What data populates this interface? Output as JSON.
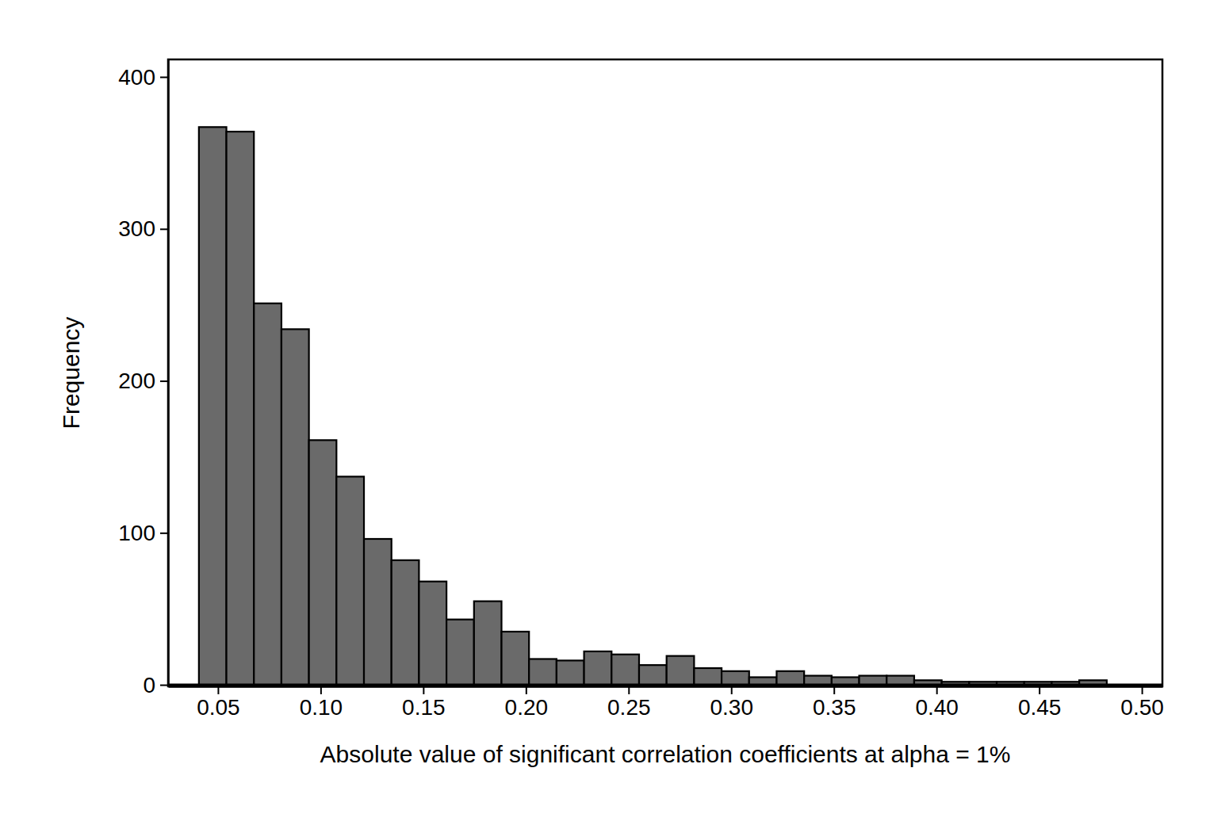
{
  "chart_data": {
    "type": "histogram",
    "x_label": "Absolute value of significant correlation coefficients at alpha = 1%",
    "y_label": "Frequency",
    "bins": [
      0.0407,
      0.0541,
      0.0675,
      0.0809,
      0.0943,
      0.1077,
      0.1211,
      0.1345,
      0.1479,
      0.1613,
      0.1747,
      0.1881,
      0.2015,
      0.2149,
      0.2283,
      0.2417,
      0.2551,
      0.2685,
      0.2819,
      0.2953,
      0.3087,
      0.3221,
      0.3355,
      0.3489,
      0.3623,
      0.3757,
      0.3891,
      0.4025,
      0.4159,
      0.4293,
      0.4427,
      0.4561,
      0.4695,
      0.4829
    ],
    "values": [
      367,
      364,
      251,
      234,
      161,
      137,
      96,
      82,
      68,
      43,
      55,
      35,
      17,
      16,
      22,
      20,
      13,
      19,
      11,
      9,
      5,
      9,
      6,
      5,
      6,
      6,
      3,
      2,
      2,
      2,
      2,
      2,
      3
    ],
    "color": "#6a6a6a",
    "xlim": [
      0.0257,
      0.51
    ],
    "ylim": [
      -1,
      411.5
    ],
    "xticks": [
      0.05,
      {
        "value": 0.1,
        "label": "0.10"
      },
      0.15,
      {
        "value": 0.2,
        "label": "0.20"
      },
      0.25,
      {
        "value": 0.3,
        "label": "0.30"
      },
      0.35,
      {
        "value": 0.4,
        "label": "0.40"
      },
      0.45,
      {
        "value": 0.5,
        "label": "0.50"
      }
    ],
    "yticks": [
      0,
      100,
      200,
      300,
      400
    ]
  }
}
